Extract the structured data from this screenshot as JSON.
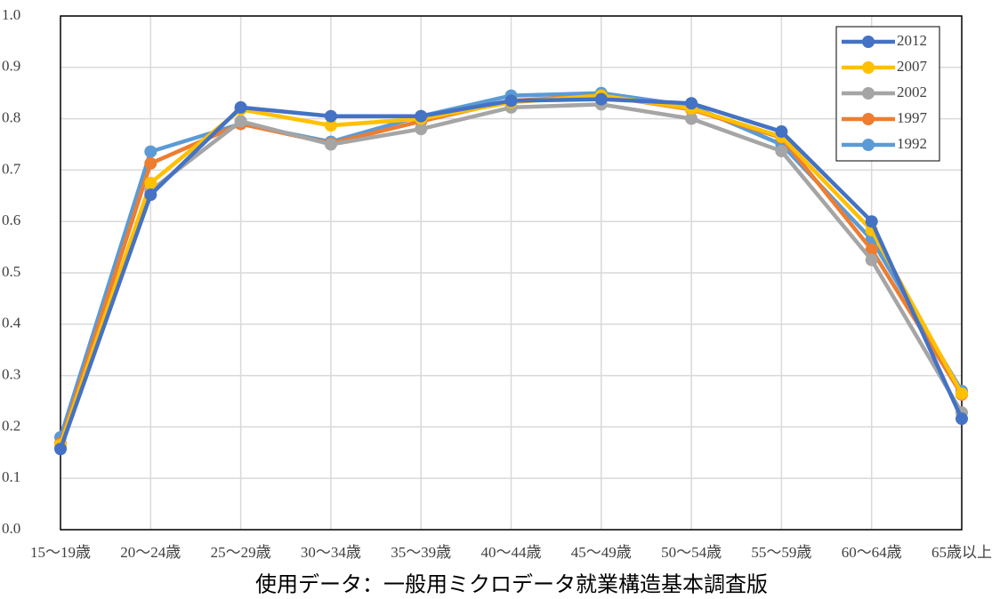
{
  "chart_data": {
    "type": "line",
    "x_label": "使用データ：一般用ミクロデータ就業構造基本調査版",
    "categories": [
      "15～19歳",
      "20～24歳",
      "25～29歳",
      "30～34歳",
      "35～39歳",
      "40～44歳",
      "45～49歳",
      "50～54歳",
      "55～59歳",
      "60～64歳",
      "65歳以上"
    ],
    "series": [
      {
        "name": "2012",
        "color": "#4472c4",
        "values": [
          0.157,
          0.652,
          0.822,
          0.805,
          0.805,
          0.835,
          0.838,
          0.83,
          0.775,
          0.6,
          0.216
        ]
      },
      {
        "name": "2007",
        "color": "#ffc000",
        "values": [
          0.165,
          0.675,
          0.818,
          0.787,
          0.8,
          0.832,
          0.845,
          0.82,
          0.765,
          0.583,
          0.265
        ]
      },
      {
        "name": "2002",
        "color": "#a5a5a5",
        "values": [
          0.163,
          0.66,
          0.795,
          0.75,
          0.78,
          0.822,
          0.828,
          0.8,
          0.737,
          0.525,
          0.228
        ]
      },
      {
        "name": "1997",
        "color": "#ed7d31",
        "values": [
          0.168,
          0.713,
          0.79,
          0.752,
          0.795,
          0.835,
          0.845,
          0.818,
          0.763,
          0.545,
          0.263
        ]
      },
      {
        "name": "1992",
        "color": "#5b9bd5",
        "values": [
          0.18,
          0.736,
          0.79,
          0.755,
          0.805,
          0.845,
          0.85,
          0.825,
          0.75,
          0.565,
          0.27
        ]
      }
    ],
    "ylim": [
      0,
      1
    ],
    "yticks": [
      {
        "value": 0,
        "label": "0.0"
      },
      0.1,
      0.2,
      0.3,
      0.4,
      0.5,
      0.6,
      0.7,
      0.8,
      0.9,
      {
        "value": 1,
        "label": "1.0"
      }
    ],
    "grid": true,
    "legend": "upper right"
  }
}
